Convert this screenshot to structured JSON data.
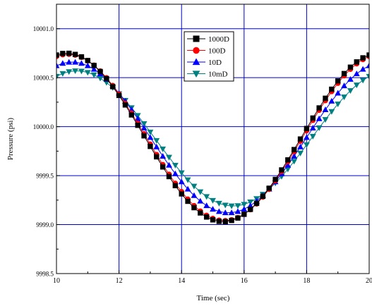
{
  "chart_data": {
    "type": "line",
    "title": "",
    "xlabel": "Time (sec)",
    "ylabel": "Pressure (psi)",
    "xlim": [
      10,
      20
    ],
    "ylim": [
      9998.5,
      10001.25
    ],
    "xticks": [
      10,
      12,
      14,
      16,
      18,
      20
    ],
    "xtick_labels": [
      "10",
      "12",
      "14",
      "16",
      "18",
      "20"
    ],
    "yticks": [
      9998.5,
      9999.0,
      9999.5,
      10000.0,
      10000.5,
      10001.0
    ],
    "ytick_labels": [
      "9998.5",
      "9999.0",
      "9999.5",
      "10000.0",
      "10000.5",
      "10001.0"
    ],
    "grid": true,
    "grid_color": "#0000cc",
    "legend_position": "top-center",
    "model": {
      "period": 10,
      "x_start": 10.0,
      "x_step": 0.2,
      "x_end": 20.0
    },
    "series": [
      {
        "name": "1000D",
        "color": "#000000",
        "marker": "square",
        "mean": 9999.89,
        "amplitude": 0.86,
        "peak_time": 10.33
      },
      {
        "name": "100D",
        "color": "#ff0000",
        "marker": "circle",
        "mean": 9999.89,
        "amplitude": 0.85,
        "peak_time": 10.37
      },
      {
        "name": "10D",
        "color": "#0000ff",
        "marker": "triangle-up",
        "mean": 9999.89,
        "amplitude": 0.77,
        "peak_time": 10.5
      },
      {
        "name": "10mD",
        "color": "#008080",
        "marker": "triangle-down",
        "mean": 9999.88,
        "amplitude": 0.69,
        "peak_time": 10.65
      }
    ]
  }
}
